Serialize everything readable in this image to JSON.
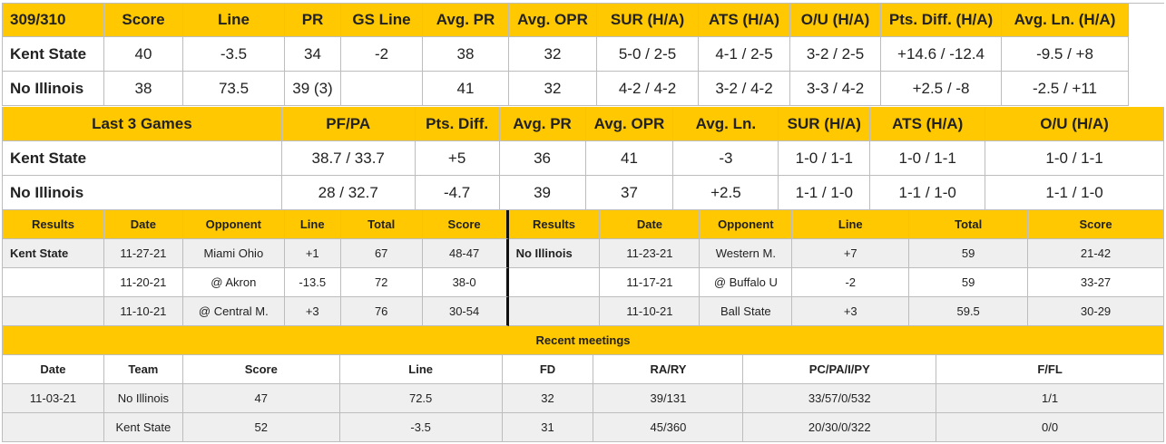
{
  "matchup": {
    "headers": [
      "309/310",
      "Score",
      "Line",
      "PR",
      "GS Line",
      "Avg. PR",
      "Avg. OPR",
      "SUR (H/A)",
      "ATS (H/A)",
      "O/U (H/A)",
      "Pts. Diff. (H/A)",
      "Avg. Ln. (H/A)"
    ],
    "rows": [
      [
        "Kent State",
        "40",
        "-3.5",
        "34",
        "-2",
        "38",
        "32",
        "5-0 / 2-5",
        "4-1 / 2-5",
        "3-2 / 2-5",
        "+14.6 / -12.4",
        "-9.5 / +8"
      ],
      [
        "No Illinois",
        "38",
        "73.5",
        "39 (3)",
        "",
        "41",
        "32",
        "4-2 / 4-2",
        "3-2 / 4-2",
        "3-3 / 4-2",
        "+2.5 / -8",
        "-2.5 / +11"
      ]
    ]
  },
  "last3": {
    "headers": [
      "Last 3 Games",
      "PF/PA",
      "Pts. Diff.",
      "Avg. PR",
      "Avg. OPR",
      "Avg. Ln.",
      "SUR (H/A)",
      "ATS (H/A)",
      "O/U (H/A)"
    ],
    "rows": [
      [
        "Kent State",
        "38.7 / 33.7",
        "+5",
        "36",
        "41",
        "-3",
        "1-0 / 1-1",
        "1-0 / 1-1",
        "1-0 / 1-1"
      ],
      [
        "No Illinois",
        "28 / 32.7",
        "-4.7",
        "39",
        "37",
        "+2.5",
        "1-1 / 1-0",
        "1-1 / 1-0",
        "1-1 / 1-0"
      ]
    ]
  },
  "results": {
    "headers": [
      "Results",
      "Date",
      "Opponent",
      "Line",
      "Total",
      "Score",
      "Results",
      "Date",
      "Opponent",
      "Line",
      "Total",
      "Score"
    ],
    "rows": [
      [
        "Kent State",
        "11-27-21",
        "Miami Ohio",
        "+1",
        "67",
        "48-47",
        "No Illinois",
        "11-23-21",
        "Western M.",
        "+7",
        "59",
        "21-42"
      ],
      [
        "",
        "11-20-21",
        "@ Akron",
        "-13.5",
        "72",
        "38-0",
        "",
        "11-17-21",
        "@ Buffalo U",
        "-2",
        "59",
        "33-27"
      ],
      [
        "",
        "11-10-21",
        "@ Central M.",
        "+3",
        "76",
        "30-54",
        "",
        "11-10-21",
        "Ball State",
        "+3",
        "59.5",
        "30-29"
      ]
    ]
  },
  "meetings": {
    "title": "Recent meetings",
    "headers": [
      "Date",
      "Team",
      "Score",
      "Line",
      "FD",
      "RA/RY",
      "PC/PA/I/PY",
      "F/FL"
    ],
    "rows": [
      [
        "11-03-21",
        "No Illinois",
        "47",
        "72.5",
        "32",
        "39/131",
        "33/57/0/532",
        "1/1"
      ],
      [
        "",
        "Kent State",
        "52",
        "-3.5",
        "31",
        "45/360",
        "20/30/0/322",
        "0/0"
      ]
    ]
  },
  "colors": {
    "accent": "#ffc800",
    "stripe": "#efefef",
    "border": "#bdbdbd"
  }
}
